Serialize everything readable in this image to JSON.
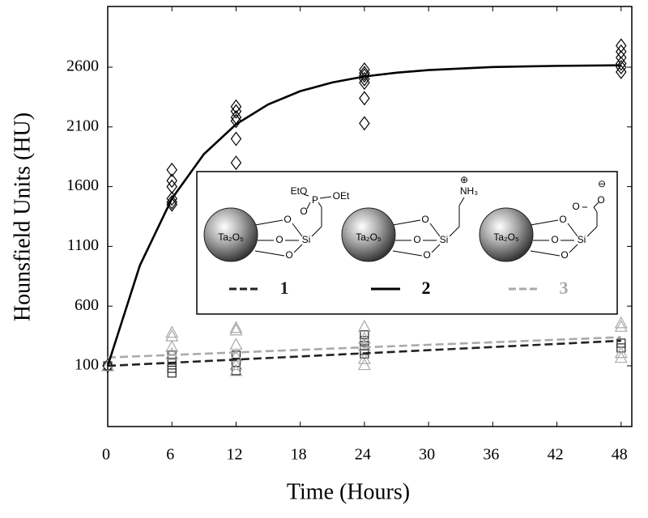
{
  "chart_data": {
    "type": "scatter",
    "xlabel": "Time (Hours)",
    "ylabel": "Hounsfield Units (HU)",
    "xlim": [
      0,
      49
    ],
    "ylim": [
      -408,
      3108
    ],
    "xticks": [
      0,
      6,
      12,
      18,
      24,
      30,
      36,
      42,
      48
    ],
    "yticks": [
      100,
      600,
      1100,
      1600,
      2100,
      2600
    ],
    "series": [
      {
        "name": "1",
        "color": "#222222",
        "marker": "square",
        "dash": true,
        "x": [
          0,
          6,
          6,
          6,
          6,
          12,
          12,
          12,
          24,
          24,
          24,
          24,
          24,
          48,
          48
        ],
        "values": [
          100,
          190,
          130,
          80,
          40,
          190,
          130,
          60,
          360,
          310,
          270,
          230,
          200,
          290,
          250
        ],
        "fit": {
          "x": [
            0,
            48
          ],
          "values": [
            100,
            310
          ]
        }
      },
      {
        "name": "2",
        "color": "#000000",
        "marker": "diamond",
        "dash": false,
        "x": [
          0,
          6,
          6,
          6,
          6,
          6,
          6,
          12,
          12,
          12,
          12,
          12,
          12,
          24,
          24,
          24,
          24,
          24,
          24,
          24,
          48,
          48,
          48,
          48,
          48,
          48
        ],
        "values": [
          100,
          1740,
          1650,
          1600,
          1500,
          1470,
          1450,
          2270,
          2230,
          2180,
          2150,
          2000,
          1800,
          2580,
          2550,
          2530,
          2500,
          2470,
          2340,
          2130,
          2780,
          2730,
          2680,
          2630,
          2600,
          2560
        ],
        "fit": {
          "x": [
            0,
            3,
            6,
            9,
            12,
            15,
            18,
            21,
            24,
            27,
            30,
            36,
            42,
            48
          ],
          "values": [
            100,
            939,
            1500,
            1873,
            2122,
            2288,
            2399,
            2472,
            2522,
            2554,
            2576,
            2601,
            2611,
            2616
          ]
        }
      },
      {
        "name": "3",
        "color": "#aaaaaa",
        "marker": "triangle",
        "dash": true,
        "x": [
          0,
          6,
          6,
          6,
          6,
          12,
          12,
          12,
          12,
          12,
          12,
          24,
          24,
          24,
          24,
          24,
          48,
          48,
          48,
          48
        ],
        "values": [
          100,
          380,
          350,
          260,
          200,
          420,
          400,
          280,
          180,
          110,
          60,
          430,
          330,
          270,
          160,
          110,
          460,
          430,
          210,
          170
        ],
        "fit": {
          "x": [
            0,
            48
          ],
          "values": [
            170,
            340
          ]
        }
      }
    ],
    "legend_structures": [
      {
        "core": "Ta₂O₅",
        "atoms": [
          "O",
          "O",
          "Si",
          "O",
          "EtO",
          "P",
          "OEt",
          "O"
        ]
      },
      {
        "core": "Ta₂O₅",
        "atoms": [
          "O",
          "O",
          "Si",
          "O",
          "NH₃",
          "⊕"
        ]
      },
      {
        "core": "Ta₂O₅",
        "atoms": [
          "O",
          "O",
          "Si",
          "O",
          "O",
          "⊖",
          "O"
        ]
      }
    ]
  }
}
